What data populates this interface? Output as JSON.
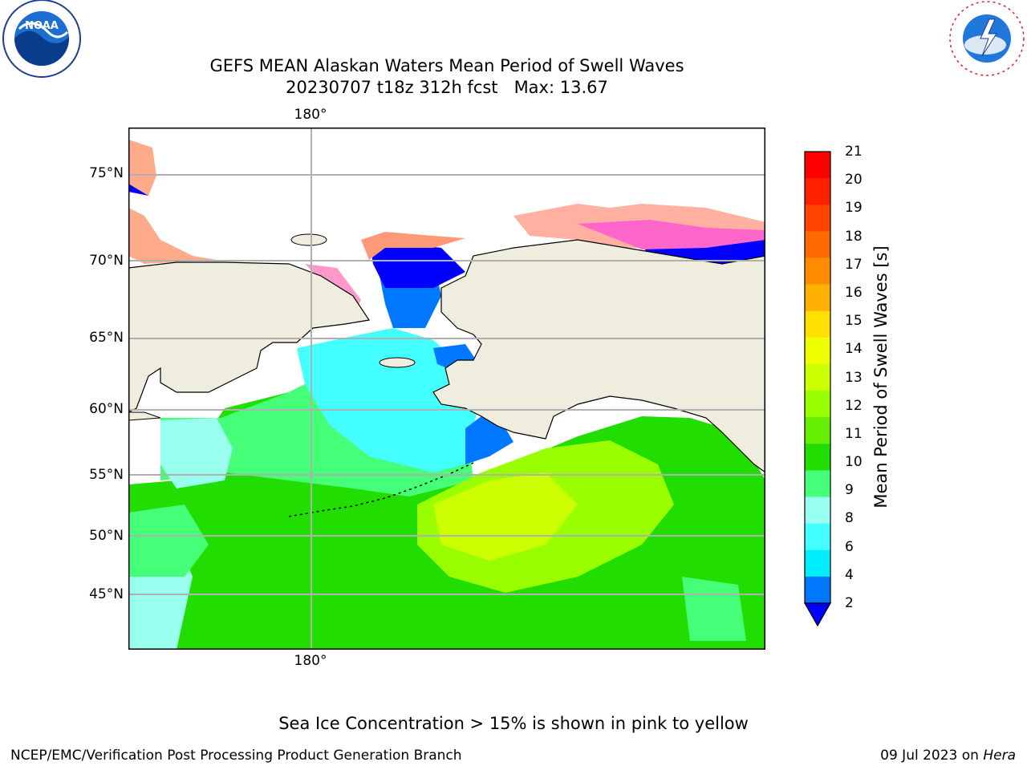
{
  "title": {
    "line1": "GEFS MEAN Alaskan Waters Mean Period of Swell Waves",
    "line2": "20230707 t18z 312h fcst   Max: 13.67"
  },
  "logos": {
    "left": "NOAA",
    "right": "NATIONAL WEATHER SERVICE"
  },
  "map": {
    "lat_labels": [
      "75°N",
      "70°N",
      "65°N",
      "60°N",
      "55°N",
      "50°N",
      "45°N"
    ],
    "lon_label_top": "180°",
    "lon_label_bottom": "180°",
    "colors": {
      "land": "#efedde",
      "ocean_deep": "#00e000",
      "grid": "#b0b0b0"
    }
  },
  "colorbar": {
    "label": "Mean Period of Swell Waves [s]",
    "ticks": [
      "21",
      "20",
      "19",
      "18",
      "17",
      "16",
      "15",
      "14",
      "13",
      "12",
      "11",
      "10",
      "9",
      "8",
      "6",
      "4",
      "2"
    ],
    "colors": [
      "#ff0000",
      "#ff2000",
      "#ff4400",
      "#ff6a00",
      "#ff8c00",
      "#ffb000",
      "#ffe000",
      "#eeff00",
      "#ccff00",
      "#99ff00",
      "#66ee00",
      "#22dd00",
      "#44ff77",
      "#99ffee",
      "#44ffff",
      "#00eeff",
      "#0077ff"
    ],
    "under_color": "#0000ff"
  },
  "footnote": "Sea Ice Concentration > 15% is shown in pink to yellow",
  "footer": {
    "left": "NCEP/EMC/Verification Post Processing Product Generation Branch",
    "right_date": "09 Jul 2023 on",
    "right_host": "Hera"
  }
}
